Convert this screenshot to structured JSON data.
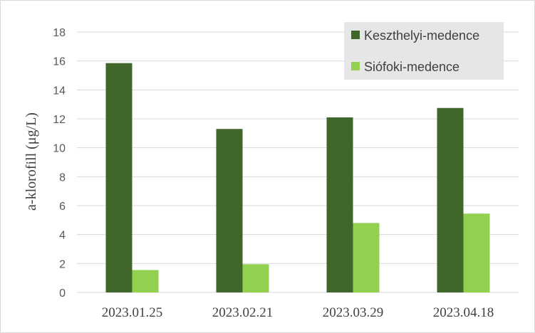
{
  "chart_data": {
    "type": "bar",
    "categories": [
      "2023.01.25",
      "2023.02.21",
      "2023.03.29",
      "2023.04.18"
    ],
    "series": [
      {
        "name": "Keszthelyi-medence",
        "color": "#41662a",
        "values": [
          15.85,
          11.3,
          12.1,
          12.75
        ]
      },
      {
        "name": "Siófoki-medence",
        "color": "#92d050",
        "values": [
          1.55,
          1.95,
          4.8,
          5.45
        ]
      }
    ],
    "title": "",
    "xlabel": "",
    "ylabel": "a-klorofill (μg/L)",
    "ylim": [
      0,
      18
    ],
    "yticks": [
      "0",
      "2",
      "4",
      "6",
      "8",
      "10",
      "12",
      "14",
      "16",
      "18"
    ],
    "grid": true,
    "legend_position": "top-right"
  }
}
